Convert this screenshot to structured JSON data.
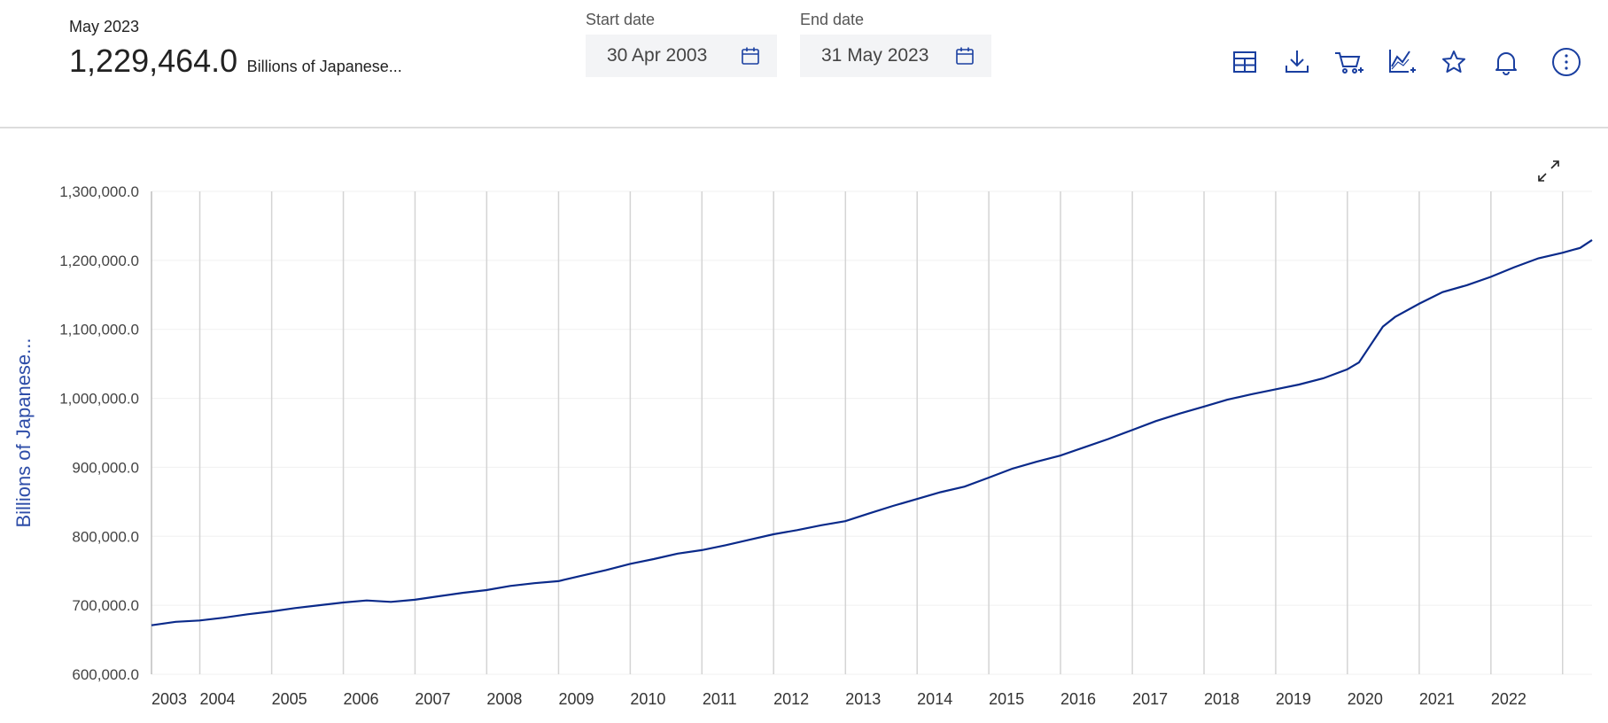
{
  "summary": {
    "period": "May 2023",
    "value": "1,229,464.0",
    "unit": "Billions of Japanese..."
  },
  "date_range": {
    "start_label": "Start date",
    "start_value": "30 Apr 2003",
    "end_label": "End date",
    "end_value": "31 May 2023"
  },
  "toolbar": {
    "icons": [
      "table-icon",
      "download-icon",
      "cart-add-icon",
      "chart-add-icon",
      "star-icon",
      "bell-icon",
      "more-options-icon"
    ]
  },
  "colors": {
    "accent": "#1a3fa0",
    "line": "#0a2a8a",
    "axis_label": "#2e4da8"
  },
  "chart_data": {
    "type": "line",
    "title": "",
    "xlabel": "",
    "ylabel": "Billions of Japanese...",
    "xlim": [
      "2003-04-30",
      "2023-05-31"
    ],
    "ylim": [
      600000,
      1300000
    ],
    "yticks": [
      600000,
      700000,
      800000,
      900000,
      1000000,
      1100000,
      1200000,
      1300000
    ],
    "ytick_labels": [
      "600,000.0",
      "700,000.0",
      "800,000.0",
      "900,000.0",
      "1,000,000.0",
      "1,100,000.0",
      "1,200,000.0",
      "1,300,000.0"
    ],
    "xtick_labels": [
      "2003",
      "2004",
      "2005",
      "2006",
      "2007",
      "2008",
      "2009",
      "2010",
      "2011",
      "2012",
      "2013",
      "2014",
      "2015",
      "2016",
      "2017",
      "2018",
      "2019",
      "2020",
      "2021",
      "2022"
    ],
    "vertical_gridlines": true,
    "series": [
      {
        "points": [
          [
            "2003-04-30",
            671000
          ],
          [
            "2003-08-31",
            676000
          ],
          [
            "2003-12-31",
            678000
          ],
          [
            "2004-04-30",
            682000
          ],
          [
            "2004-08-31",
            687000
          ],
          [
            "2004-12-31",
            691000
          ],
          [
            "2005-04-30",
            696000
          ],
          [
            "2005-08-31",
            700000
          ],
          [
            "2005-12-31",
            704000
          ],
          [
            "2006-04-30",
            707000
          ],
          [
            "2006-08-31",
            705000
          ],
          [
            "2006-12-31",
            708000
          ],
          [
            "2007-04-30",
            713000
          ],
          [
            "2007-08-31",
            718000
          ],
          [
            "2007-12-31",
            722000
          ],
          [
            "2008-04-30",
            728000
          ],
          [
            "2008-08-31",
            732000
          ],
          [
            "2008-12-31",
            735000
          ],
          [
            "2009-04-30",
            743000
          ],
          [
            "2009-08-31",
            751000
          ],
          [
            "2009-12-31",
            760000
          ],
          [
            "2010-04-30",
            767000
          ],
          [
            "2010-08-31",
            775000
          ],
          [
            "2010-12-31",
            780000
          ],
          [
            "2011-04-30",
            787000
          ],
          [
            "2011-08-31",
            795000
          ],
          [
            "2011-12-31",
            803000
          ],
          [
            "2012-04-30",
            809000
          ],
          [
            "2012-08-31",
            816000
          ],
          [
            "2012-12-31",
            822000
          ],
          [
            "2013-04-30",
            833000
          ],
          [
            "2013-08-31",
            844000
          ],
          [
            "2013-12-31",
            854000
          ],
          [
            "2014-04-30",
            864000
          ],
          [
            "2014-08-31",
            872000
          ],
          [
            "2014-12-31",
            885000
          ],
          [
            "2015-04-30",
            898000
          ],
          [
            "2015-08-31",
            908000
          ],
          [
            "2015-12-31",
            917000
          ],
          [
            "2016-04-30",
            929000
          ],
          [
            "2016-08-31",
            941000
          ],
          [
            "2016-12-31",
            954000
          ],
          [
            "2017-04-30",
            967000
          ],
          [
            "2017-08-31",
            978000
          ],
          [
            "2017-12-31",
            988000
          ],
          [
            "2018-04-30",
            998000
          ],
          [
            "2018-08-31",
            1006000
          ],
          [
            "2018-12-31",
            1013000
          ],
          [
            "2019-04-30",
            1020000
          ],
          [
            "2019-08-31",
            1029000
          ],
          [
            "2019-12-31",
            1042000
          ],
          [
            "2020-02-29",
            1052000
          ],
          [
            "2020-04-30",
            1078000
          ],
          [
            "2020-06-30",
            1104000
          ],
          [
            "2020-08-31",
            1118000
          ],
          [
            "2020-12-31",
            1137000
          ],
          [
            "2021-04-30",
            1154000
          ],
          [
            "2021-08-31",
            1164000
          ],
          [
            "2021-12-31",
            1176000
          ],
          [
            "2022-04-30",
            1190000
          ],
          [
            "2022-08-31",
            1203000
          ],
          [
            "2022-12-31",
            1211000
          ],
          [
            "2023-03-31",
            1218000
          ],
          [
            "2023-05-31",
            1229464
          ]
        ]
      }
    ]
  }
}
